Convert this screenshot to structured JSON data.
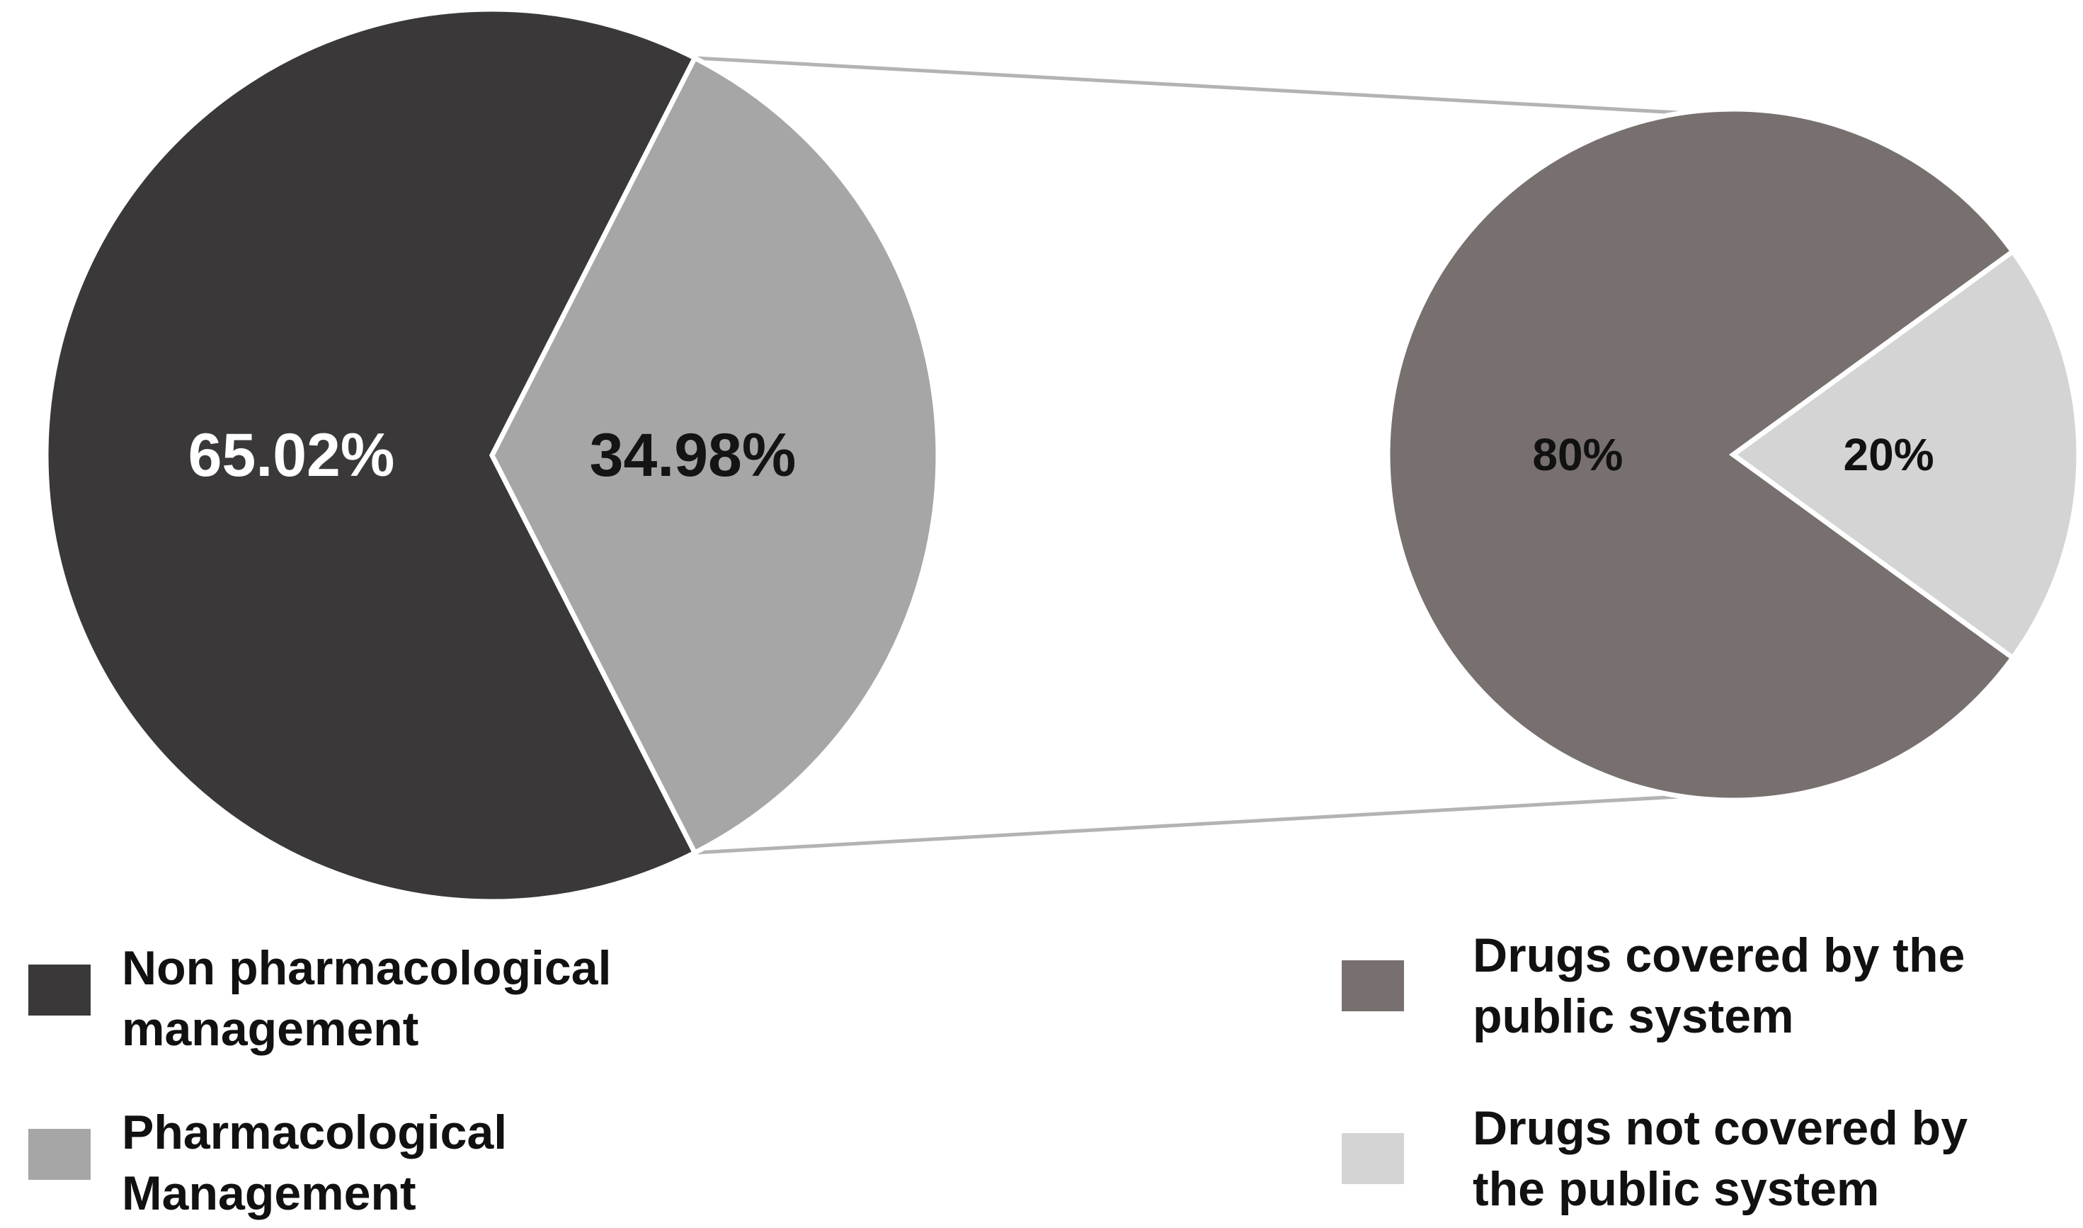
{
  "chart_data": [
    {
      "type": "pie",
      "title": "",
      "slices": [
        {
          "label": "Non pharmacological management",
          "value": 65.02,
          "display": "65.02%",
          "color": "#3a3839",
          "label_color": "#ffffff"
        },
        {
          "label": "Pharmacological Management",
          "value": 34.98,
          "display": "34.98%",
          "color": "#a6a6a6",
          "label_color": "#141414"
        }
      ],
      "legend": {
        "position": "bottom-left",
        "entries": [
          {
            "lines": [
              "Non pharmacological",
              "management"
            ],
            "color": "#3a3839"
          },
          {
            "lines": [
              "Pharmacological",
              "Management"
            ],
            "color": "#a6a6a6"
          }
        ]
      },
      "exploded_slice": "Pharmacological Management"
    },
    {
      "type": "pie",
      "title": "",
      "breakdown_of": "Pharmacological Management",
      "slices": [
        {
          "label": "Drugs covered by the public system",
          "value": 80,
          "display": "80%",
          "color": "#77706f",
          "label_color": "#111111"
        },
        {
          "label": "Drugs not covered by the public system",
          "value": 20,
          "display": "20%",
          "color": "#d4d4d4",
          "label_color": "#111111"
        }
      ],
      "legend": {
        "position": "bottom-right",
        "entries": [
          {
            "lines": [
              "Drugs covered by the",
              "public system"
            ],
            "color": "#77706f"
          },
          {
            "lines": [
              "Drugs not covered by",
              "the public system"
            ],
            "color": "#d4d4d4"
          }
        ]
      }
    }
  ],
  "connector_color": "#b3b3b3"
}
